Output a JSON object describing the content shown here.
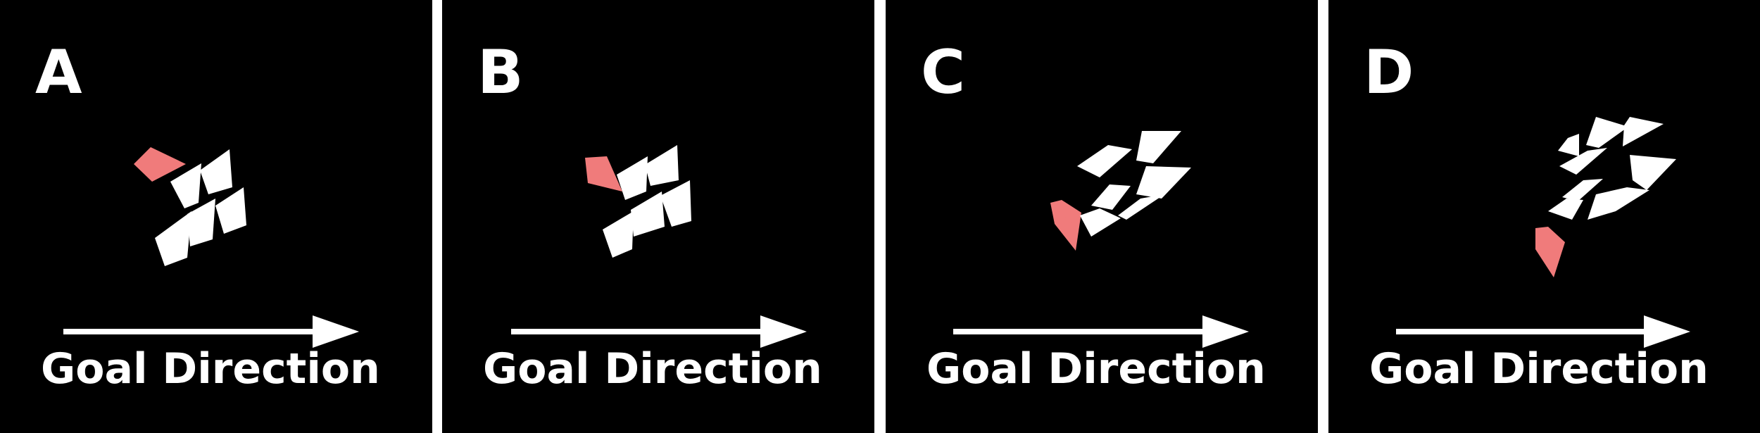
{
  "colors": {
    "background": "#000000",
    "separator": "#ffffff",
    "agent_white": "#ffffff",
    "agent_highlight": "#f07b7b",
    "arrow": "#ffffff"
  },
  "panels": [
    {
      "label": "A",
      "caption": "Goal Direction",
      "arrow_icon": "right-arrow-icon"
    },
    {
      "label": "B",
      "caption": "Goal Direction",
      "arrow_icon": "right-arrow-icon"
    },
    {
      "label": "C",
      "caption": "Goal Direction",
      "arrow_icon": "right-arrow-icon"
    },
    {
      "label": "D",
      "caption": "Goal Direction",
      "arrow_icon": "right-arrow-icon"
    }
  ]
}
